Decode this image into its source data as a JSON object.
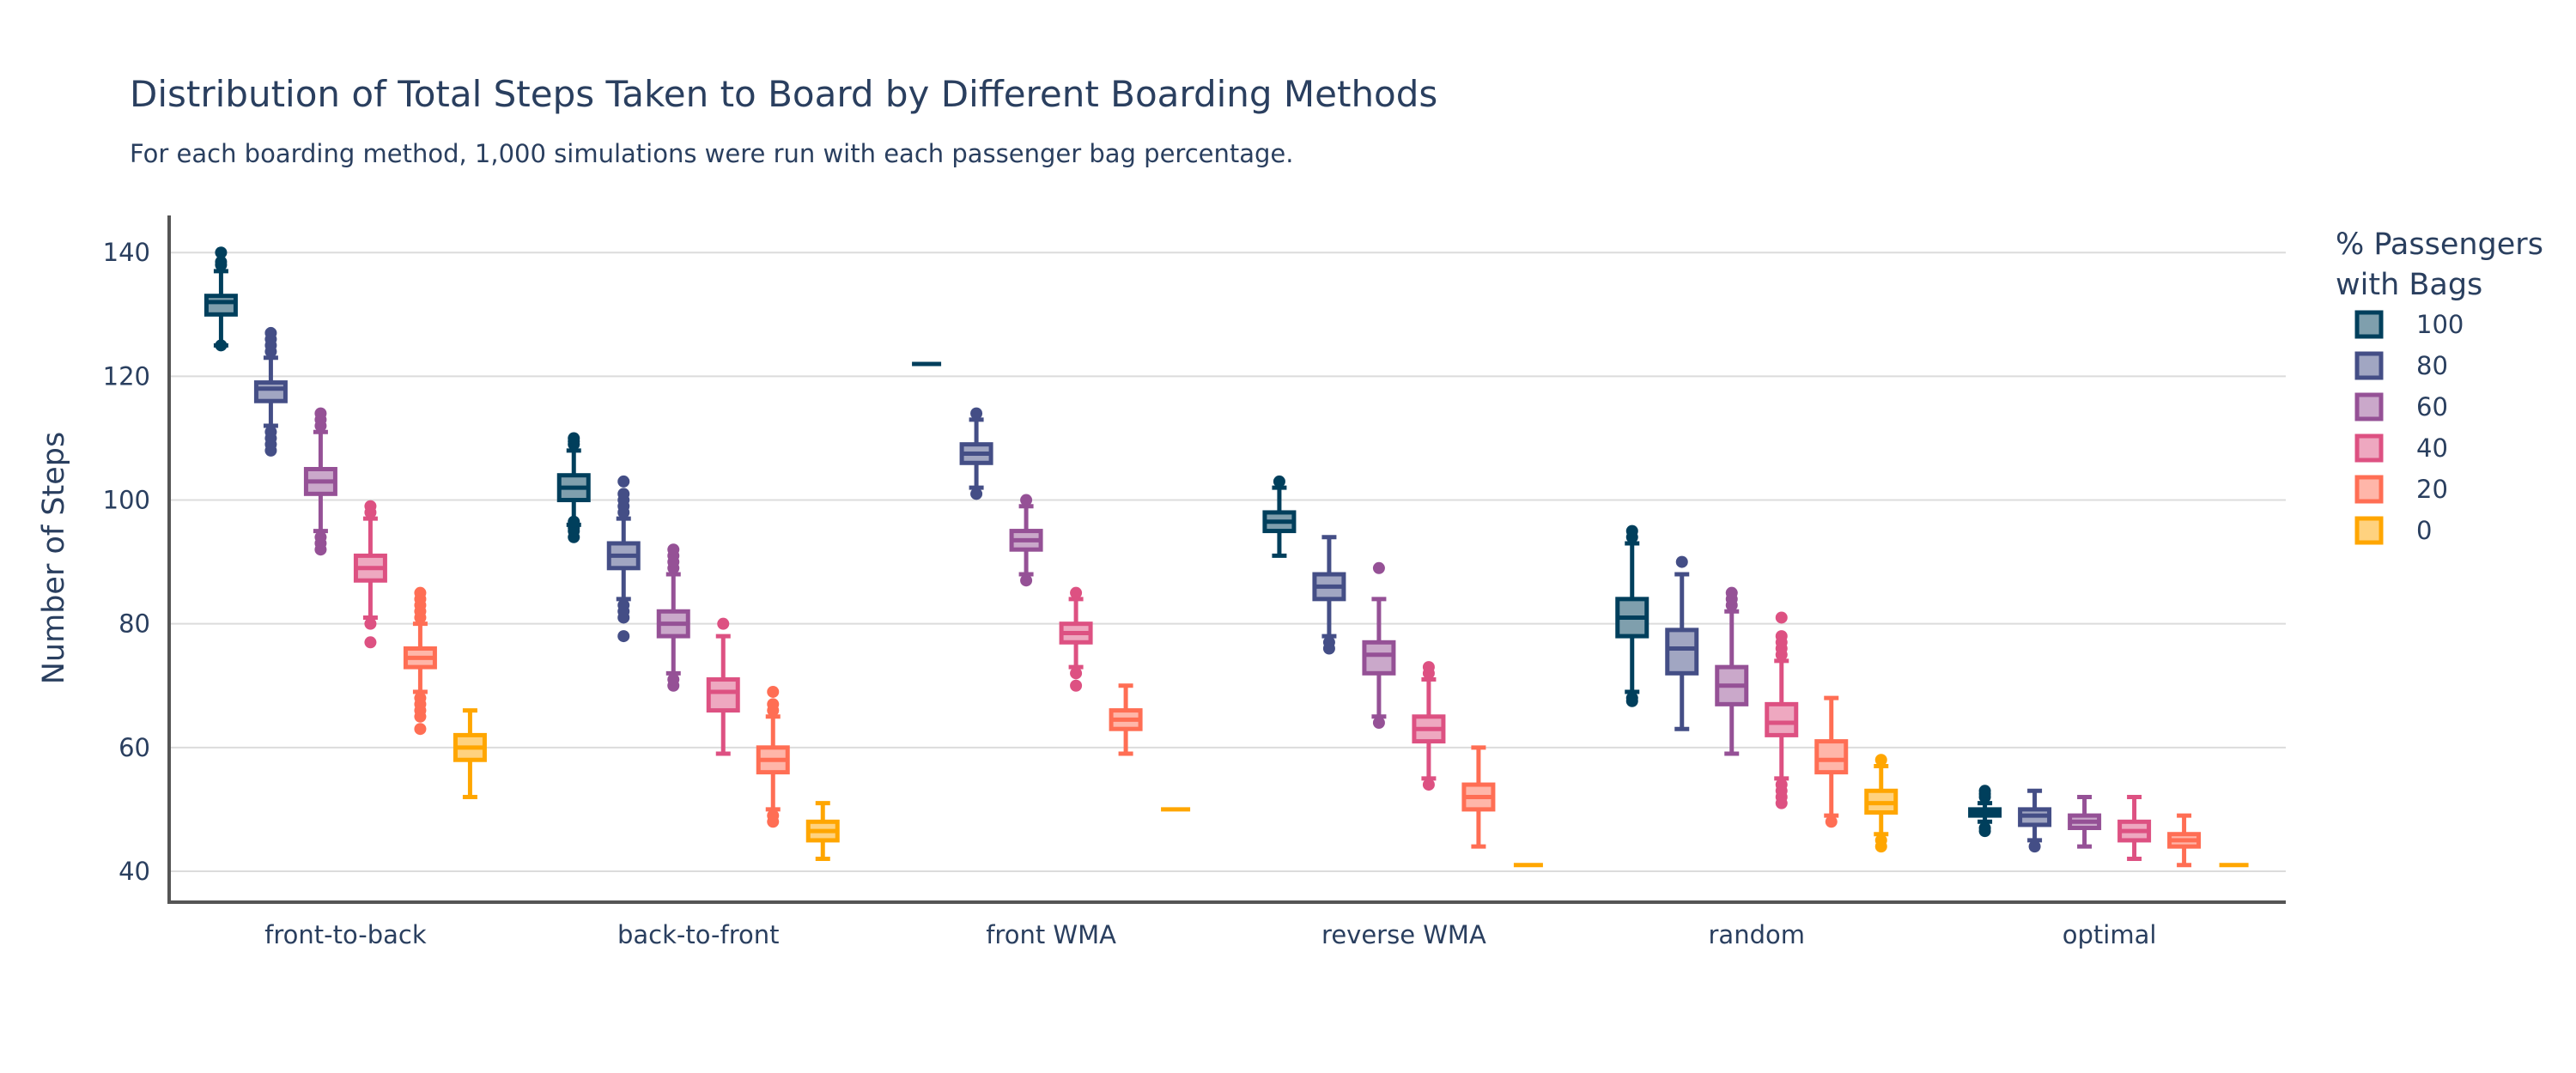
{
  "chart_data": {
    "type": "box",
    "title": "Distribution of Total Steps Taken to Board by Different Boarding Methods",
    "subtitle": "For each boarding method, 1,000 simulations were run with each passenger bag percentage.",
    "xlabel": "",
    "ylabel": "Number of Steps",
    "ylim": [
      35,
      146
    ],
    "yticks": [
      40,
      60,
      80,
      100,
      120,
      140
    ],
    "grid": true,
    "legend_title_line1": "% Passengers",
    "legend_title_line2": "with Bags",
    "legend_position": "right",
    "categories": [
      "front-to-back",
      "back-to-front",
      "front WMA",
      "reverse WMA",
      "random",
      "optimal"
    ],
    "series": [
      {
        "name": "100",
        "color": "#003f5c",
        "fill": "#7f9fad",
        "boxes": [
          {
            "low": 125,
            "q1": 130,
            "median": 132,
            "q3": 133,
            "high": 137,
            "outliers": [
              138,
              138.5,
              140,
              125
            ]
          },
          {
            "low": 96,
            "q1": 100,
            "median": 102,
            "q3": 104,
            "high": 108,
            "outliers": [
              109,
              109.5,
              110,
              94,
              95,
              95.5,
              96.5
            ]
          },
          {
            "low": 122,
            "q1": 122,
            "median": 122,
            "q3": 122,
            "high": 122,
            "outliers": []
          },
          {
            "low": 91,
            "q1": 95,
            "median": 96.5,
            "q3": 98,
            "high": 102,
            "outliers": [
              103
            ]
          },
          {
            "low": 69,
            "q1": 78,
            "median": 81,
            "q3": 84,
            "high": 93,
            "outliers": [
              94,
              95,
              68,
              67.5
            ]
          },
          {
            "low": 48,
            "q1": 49,
            "median": 49.5,
            "q3": 50,
            "high": 51,
            "outliers": [
              52,
              52.5,
              53,
              47,
              46.5
            ]
          }
        ]
      },
      {
        "name": "80",
        "color": "#444e86",
        "fill": "#a1a6c2",
        "boxes": [
          {
            "low": 112,
            "q1": 116,
            "median": 118,
            "q3": 119,
            "high": 123,
            "outliers": [
              124,
              125,
              126,
              127,
              108,
              109,
              110,
              111
            ]
          },
          {
            "low": 84,
            "q1": 89,
            "median": 91,
            "q3": 93,
            "high": 97,
            "outliers": [
              98,
              99,
              100,
              101,
              103,
              78,
              81,
              82,
              83
            ]
          },
          {
            "low": 102,
            "q1": 106,
            "median": 107.5,
            "q3": 109,
            "high": 113,
            "outliers": [
              114,
              101
            ]
          },
          {
            "low": 78,
            "q1": 84,
            "median": 86,
            "q3": 88,
            "high": 94,
            "outliers": [
              76,
              77
            ]
          },
          {
            "low": 63,
            "q1": 72,
            "median": 76,
            "q3": 79,
            "high": 88,
            "outliers": [
              90
            ]
          },
          {
            "low": 45,
            "q1": 47.5,
            "median": 49,
            "q3": 50,
            "high": 53,
            "outliers": [
              44
            ]
          }
        ]
      },
      {
        "name": "60",
        "color": "#955196",
        "fill": "#caa8ca",
        "boxes": [
          {
            "low": 95,
            "q1": 101,
            "median": 103,
            "q3": 105,
            "high": 111,
            "outliers": [
              112,
              113,
              114,
              92,
              93,
              94
            ]
          },
          {
            "low": 72,
            "q1": 78,
            "median": 80,
            "q3": 82,
            "high": 88,
            "outliers": [
              89,
              90,
              91,
              92,
              70,
              71
            ]
          },
          {
            "low": 88,
            "q1": 92,
            "median": 93.5,
            "q3": 95,
            "high": 99,
            "outliers": [
              100,
              87
            ]
          },
          {
            "low": 65,
            "q1": 72,
            "median": 75,
            "q3": 77,
            "high": 84,
            "outliers": [
              89,
              64
            ]
          },
          {
            "low": 59,
            "q1": 67,
            "median": 70,
            "q3": 73,
            "high": 82,
            "outliers": [
              83,
              84,
              85
            ]
          },
          {
            "low": 44,
            "q1": 47,
            "median": 48,
            "q3": 49,
            "high": 52,
            "outliers": []
          }
        ]
      },
      {
        "name": "40",
        "color": "#dd5182",
        "fill": "#eea8c0",
        "boxes": [
          {
            "low": 81,
            "q1": 87,
            "median": 89,
            "q3": 91,
            "high": 97,
            "outliers": [
              98,
              99,
              77,
              80
            ]
          },
          {
            "low": 59,
            "q1": 66,
            "median": 69,
            "q3": 71,
            "high": 78,
            "outliers": [
              80
            ]
          },
          {
            "low": 73,
            "q1": 77,
            "median": 78.5,
            "q3": 80,
            "high": 84,
            "outliers": [
              85,
              70,
              72
            ]
          },
          {
            "low": 55,
            "q1": 61,
            "median": 63,
            "q3": 65,
            "high": 71,
            "outliers": [
              72,
              73,
              54
            ]
          },
          {
            "low": 55,
            "q1": 62,
            "median": 64,
            "q3": 67,
            "high": 74,
            "outliers": [
              75,
              76,
              77,
              78,
              81,
              51,
              52,
              53,
              54
            ]
          },
          {
            "low": 42,
            "q1": 45,
            "median": 46.5,
            "q3": 48,
            "high": 52,
            "outliers": []
          }
        ]
      },
      {
        "name": "20",
        "color": "#ff6e54",
        "fill": "#ffb6a9",
        "boxes": [
          {
            "low": 69,
            "q1": 73,
            "median": 74.5,
            "q3": 76,
            "high": 80,
            "outliers": [
              81,
              82,
              83,
              84,
              85,
              63,
              65,
              66,
              67,
              68
            ]
          },
          {
            "low": 50,
            "q1": 56,
            "median": 58,
            "q3": 60,
            "high": 65,
            "outliers": [
              66,
              67,
              69,
              48,
              49
            ]
          },
          {
            "low": 59,
            "q1": 63,
            "median": 64.5,
            "q3": 66,
            "high": 70,
            "outliers": []
          },
          {
            "low": 44,
            "q1": 50,
            "median": 52,
            "q3": 54,
            "high": 60,
            "outliers": []
          },
          {
            "low": 49,
            "q1": 56,
            "median": 58,
            "q3": 61,
            "high": 68,
            "outliers": [
              48
            ]
          },
          {
            "low": 41,
            "q1": 44,
            "median": 45,
            "q3": 46,
            "high": 49,
            "outliers": []
          }
        ]
      },
      {
        "name": "0",
        "color": "#ffa600",
        "fill": "#ffd27f",
        "boxes": [
          {
            "low": 52,
            "q1": 58,
            "median": 60,
            "q3": 62,
            "high": 66,
            "outliers": []
          },
          {
            "low": 42,
            "q1": 45,
            "median": 46.5,
            "q3": 48,
            "high": 51,
            "outliers": []
          },
          {
            "low": 50,
            "q1": 50,
            "median": 50,
            "q3": 50,
            "high": 50,
            "outliers": []
          },
          {
            "low": 41,
            "q1": 41,
            "median": 41,
            "q3": 41,
            "high": 41,
            "outliers": []
          },
          {
            "low": 46,
            "q1": 49.5,
            "median": 51,
            "q3": 53,
            "high": 57,
            "outliers": [
              58,
              44,
              45
            ]
          },
          {
            "low": 41,
            "q1": 41,
            "median": 41,
            "q3": 41,
            "high": 41,
            "outliers": []
          }
        ]
      }
    ]
  }
}
